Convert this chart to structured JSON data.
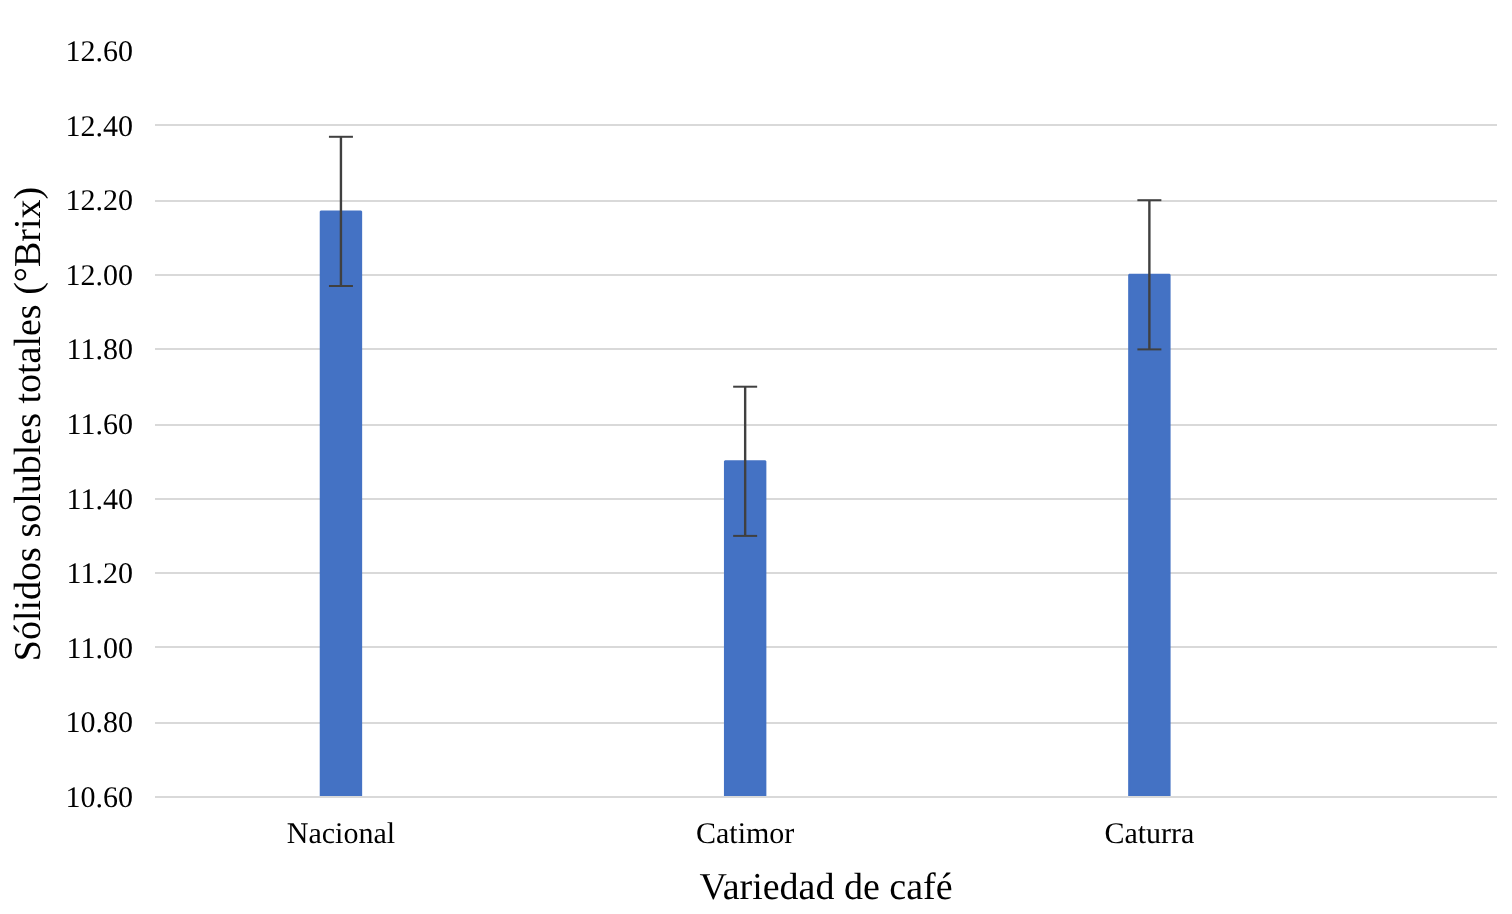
{
  "chart_data": {
    "type": "bar",
    "xlabel": "Variedad de café",
    "ylabel": "Sólidos solubles totales (°Brix)",
    "categories": [
      "Nacional",
      "Catimor",
      "Caturra"
    ],
    "values": [
      12.17,
      11.5,
      12.0
    ],
    "errors": [
      0.2,
      0.2,
      0.2
    ],
    "color": "#4472c4",
    "ylim": [
      10.6,
      12.6
    ],
    "yticks": [
      {
        "value": 10.6,
        "label": "10.60"
      },
      {
        "value": 10.8,
        "label": "10.80"
      },
      {
        "value": 11.0,
        "label": "11.00"
      },
      {
        "value": 11.2,
        "label": "11.20"
      },
      {
        "value": 11.4,
        "label": "11.40"
      },
      {
        "value": 11.6,
        "label": "11.60"
      },
      {
        "value": 11.8,
        "label": "11.80"
      },
      {
        "value": 12.0,
        "label": "12.00"
      },
      {
        "value": 12.2,
        "label": "12.20"
      },
      {
        "value": 12.4,
        "label": "12.40"
      },
      {
        "value": 12.6,
        "label": "12.60"
      }
    ],
    "grid": "y"
  }
}
